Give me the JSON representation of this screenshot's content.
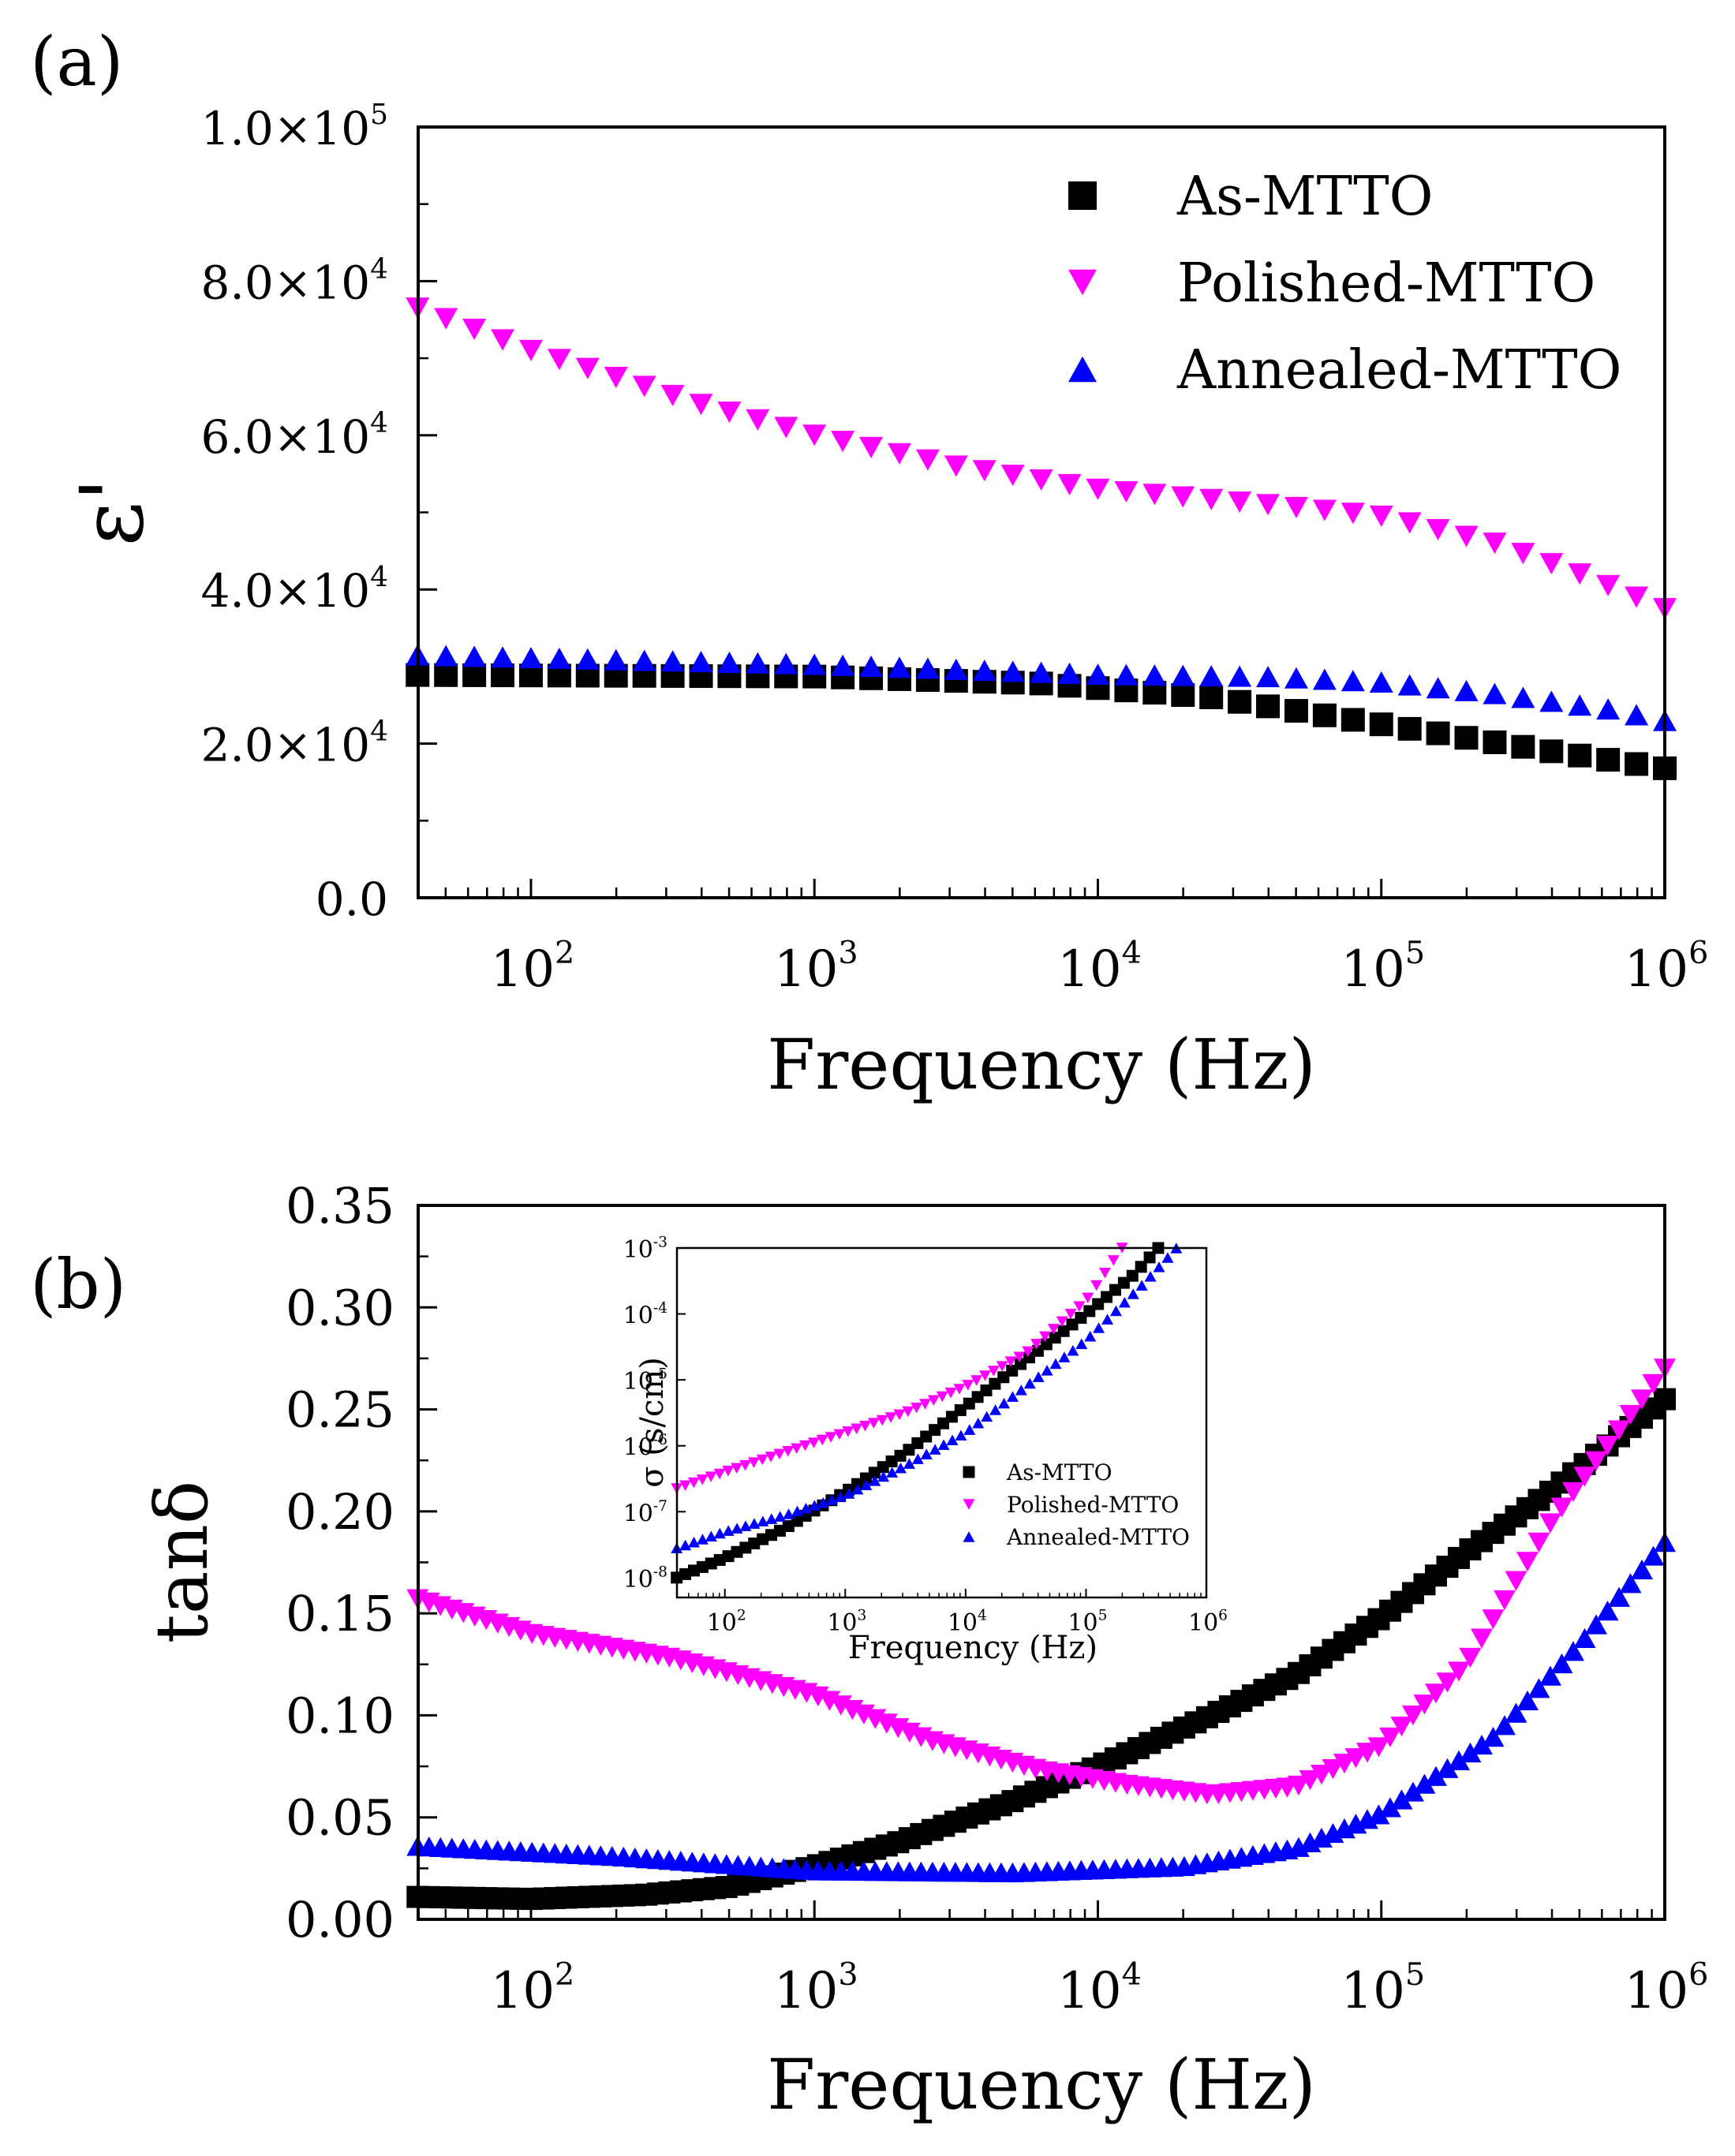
{
  "figure": {
    "panel_a_label": "(a)",
    "panel_b_label": "(b)"
  },
  "colors": {
    "as_mtto": "#000000",
    "polished_mtto": "#ff00ff",
    "annealed_mtto": "#0000ff",
    "axis": "#000000",
    "background": "#ffffff"
  },
  "chart_data": [
    {
      "id": "a",
      "type": "scatter",
      "title": "",
      "xlabel": "Frequency (Hz)",
      "ylabel": "ε'",
      "xscale": "log",
      "xlim": [
        40,
        1000000
      ],
      "ylim": [
        0,
        100000
      ],
      "x_ticks": [
        100,
        1000,
        10000,
        100000,
        1000000
      ],
      "x_tick_labels": [
        {
          "base": "10",
          "exp": "2"
        },
        {
          "base": "10",
          "exp": "3"
        },
        {
          "base": "10",
          "exp": "4"
        },
        {
          "base": "10",
          "exp": "5"
        },
        {
          "base": "10",
          "exp": "6"
        }
      ],
      "y_ticks": [
        0,
        20000,
        40000,
        60000,
        80000,
        100000
      ],
      "y_tick_labels": [
        {
          "text": "0.0",
          "exp": ""
        },
        {
          "text": "2.0×10",
          "exp": "4"
        },
        {
          "text": "4.0×10",
          "exp": "4"
        },
        {
          "text": "6.0×10",
          "exp": "4"
        },
        {
          "text": "8.0×10",
          "exp": "4"
        },
        {
          "text": "1.0×10",
          "exp": "5"
        }
      ],
      "legend_position": "top-right",
      "series": [
        {
          "name": "As-MTTO",
          "marker": "square",
          "color": "#000000",
          "log_f": [
            1.6,
            6.0
          ],
          "points": [
            [
              1.6,
              28900
            ],
            [
              3.0,
              28700
            ],
            [
              3.8,
              27800
            ],
            [
              4.4,
              26000
            ],
            [
              5.0,
              22500
            ],
            [
              5.6,
              19000
            ],
            [
              6.0,
              16800
            ]
          ]
        },
        {
          "name": "Polished-MTTO",
          "marker": "triangle-down",
          "color": "#ff00ff",
          "log_f": [
            1.6,
            6.0
          ],
          "points": [
            [
              1.6,
              76500
            ],
            [
              2.0,
              71000
            ],
            [
              2.6,
              64000
            ],
            [
              3.0,
              60000
            ],
            [
              3.5,
              56000
            ],
            [
              4.0,
              53000
            ],
            [
              4.6,
              51000
            ],
            [
              5.0,
              49500
            ],
            [
              5.4,
              46000
            ],
            [
              5.7,
              42000
            ],
            [
              6.0,
              37500
            ]
          ]
        },
        {
          "name": "Annealed-MTTO",
          "marker": "triangle-up",
          "color": "#0000ff",
          "log_f": [
            1.6,
            6.0
          ],
          "points": [
            [
              1.6,
              31500
            ],
            [
              3.0,
              30300
            ],
            [
              4.0,
              29000
            ],
            [
              4.6,
              28700
            ],
            [
              5.0,
              28000
            ],
            [
              5.4,
              26500
            ],
            [
              5.8,
              24500
            ],
            [
              6.0,
              23000
            ]
          ]
        }
      ]
    },
    {
      "id": "b",
      "type": "scatter",
      "title": "",
      "xlabel": "Frequency (Hz)",
      "ylabel": "tanδ",
      "xscale": "log",
      "xlim": [
        40,
        1000000
      ],
      "ylim": [
        0,
        0.35
      ],
      "x_ticks": [
        100,
        1000,
        10000,
        100000,
        1000000
      ],
      "x_tick_labels": [
        {
          "base": "10",
          "exp": "2"
        },
        {
          "base": "10",
          "exp": "3"
        },
        {
          "base": "10",
          "exp": "4"
        },
        {
          "base": "10",
          "exp": "5"
        },
        {
          "base": "10",
          "exp": "6"
        }
      ],
      "y_ticks": [
        0,
        0.05,
        0.1,
        0.15,
        0.2,
        0.25,
        0.3,
        0.35
      ],
      "y_tick_labels": [
        "0.00",
        "0.05",
        "0.10",
        "0.15",
        "0.20",
        "0.25",
        "0.30",
        "0.35"
      ],
      "series": [
        {
          "name": "As-MTTO",
          "marker": "square",
          "color": "#000000",
          "log_f": [
            1.6,
            6.0
          ],
          "points": [
            [
              1.6,
              0.011
            ],
            [
              2.0,
              0.01
            ],
            [
              2.4,
              0.012
            ],
            [
              2.7,
              0.016
            ],
            [
              3.0,
              0.026
            ],
            [
              3.3,
              0.038
            ],
            [
              3.7,
              0.058
            ],
            [
              4.0,
              0.075
            ],
            [
              4.4,
              0.1
            ],
            [
              4.7,
              0.12
            ],
            [
              5.0,
              0.148
            ],
            [
              5.3,
              0.18
            ],
            [
              5.6,
              0.21
            ],
            [
              6.0,
              0.255
            ]
          ]
        },
        {
          "name": "Polished-MTTO",
          "marker": "triangle-down",
          "color": "#ff00ff",
          "log_f": [
            1.6,
            6.0
          ],
          "points": [
            [
              1.6,
              0.157
            ],
            [
              2.0,
              0.14
            ],
            [
              2.5,
              0.128
            ],
            [
              3.0,
              0.11
            ],
            [
              3.4,
              0.088
            ],
            [
              3.8,
              0.073
            ],
            [
              4.1,
              0.066
            ],
            [
              4.4,
              0.061
            ],
            [
              4.7,
              0.065
            ],
            [
              5.0,
              0.085
            ],
            [
              5.3,
              0.125
            ],
            [
              5.6,
              0.195
            ],
            [
              6.0,
              0.27
            ]
          ]
        },
        {
          "name": "Annealed-MTTO",
          "marker": "triangle-up",
          "color": "#0000ff",
          "log_f": [
            1.6,
            6.0
          ],
          "points": [
            [
              1.6,
              0.036
            ],
            [
              2.3,
              0.031
            ],
            [
              3.0,
              0.024
            ],
            [
              3.7,
              0.023
            ],
            [
              4.3,
              0.026
            ],
            [
              4.7,
              0.035
            ],
            [
              5.0,
              0.052
            ],
            [
              5.4,
              0.09
            ],
            [
              5.7,
              0.135
            ],
            [
              6.0,
              0.185
            ]
          ]
        }
      ]
    },
    {
      "id": "b-inset",
      "type": "scatter",
      "title": "",
      "xlabel": "Frequency (Hz)",
      "ylabel": "σ (s/cm)",
      "xscale": "log",
      "yscale": "log",
      "xlim": [
        40,
        1000000
      ],
      "ylim": [
        5e-09,
        0.001
      ],
      "x_ticks": [
        100,
        1000,
        10000,
        100000,
        1000000
      ],
      "x_tick_labels": [
        {
          "base": "10",
          "exp": "2"
        },
        {
          "base": "10",
          "exp": "3"
        },
        {
          "base": "10",
          "exp": "4"
        },
        {
          "base": "10",
          "exp": "5"
        },
        {
          "base": "10",
          "exp": "6"
        }
      ],
      "y_ticks": [
        1e-08,
        1e-07,
        1e-06,
        1e-05,
        0.0001,
        0.001
      ],
      "y_tick_labels": [
        {
          "base": "10",
          "exp": "-8"
        },
        {
          "base": "10",
          "exp": "-7"
        },
        {
          "base": "10",
          "exp": "-6"
        },
        {
          "base": "10",
          "exp": "-5"
        },
        {
          "base": "10",
          "exp": "-4"
        },
        {
          "base": "10",
          "exp": "-3"
        }
      ],
      "legend_position": "bottom-right",
      "series": [
        {
          "name": "As-MTTO",
          "marker": "square",
          "color": "#000000",
          "log_f": [
            1.6,
            5.6
          ],
          "log_points": [
            [
              1.6,
              -8.0
            ],
            [
              2.0,
              -7.7
            ],
            [
              2.5,
              -7.25
            ],
            [
              3.0,
              -6.7
            ],
            [
              3.5,
              -6.1
            ],
            [
              4.0,
              -5.4
            ],
            [
              4.5,
              -4.7
            ],
            [
              5.0,
              -4.0
            ],
            [
              5.4,
              -3.4
            ],
            [
              5.6,
              -3.0
            ]
          ]
        },
        {
          "name": "Polished-MTTO",
          "marker": "triangle-down",
          "color": "#ff00ff",
          "log_f": [
            1.6,
            5.3
          ],
          "log_points": [
            [
              1.6,
              -6.65
            ],
            [
              2.0,
              -6.4
            ],
            [
              2.5,
              -6.1
            ],
            [
              3.0,
              -5.8
            ],
            [
              3.5,
              -5.5
            ],
            [
              4.0,
              -5.1
            ],
            [
              4.5,
              -4.6
            ],
            [
              5.0,
              -3.8
            ],
            [
              5.3,
              -3.0
            ]
          ]
        },
        {
          "name": "Annealed-MTTO",
          "marker": "triangle-up",
          "color": "#0000ff",
          "log_f": [
            1.6,
            5.75
          ],
          "log_points": [
            [
              1.6,
              -7.55
            ],
            [
              2.0,
              -7.3
            ],
            [
              2.5,
              -7.05
            ],
            [
              3.0,
              -6.75
            ],
            [
              3.5,
              -6.3
            ],
            [
              4.0,
              -5.8
            ],
            [
              4.5,
              -5.1
            ],
            [
              5.0,
              -4.4
            ],
            [
              5.5,
              -3.5
            ],
            [
              5.75,
              -3.0
            ]
          ]
        }
      ]
    }
  ]
}
